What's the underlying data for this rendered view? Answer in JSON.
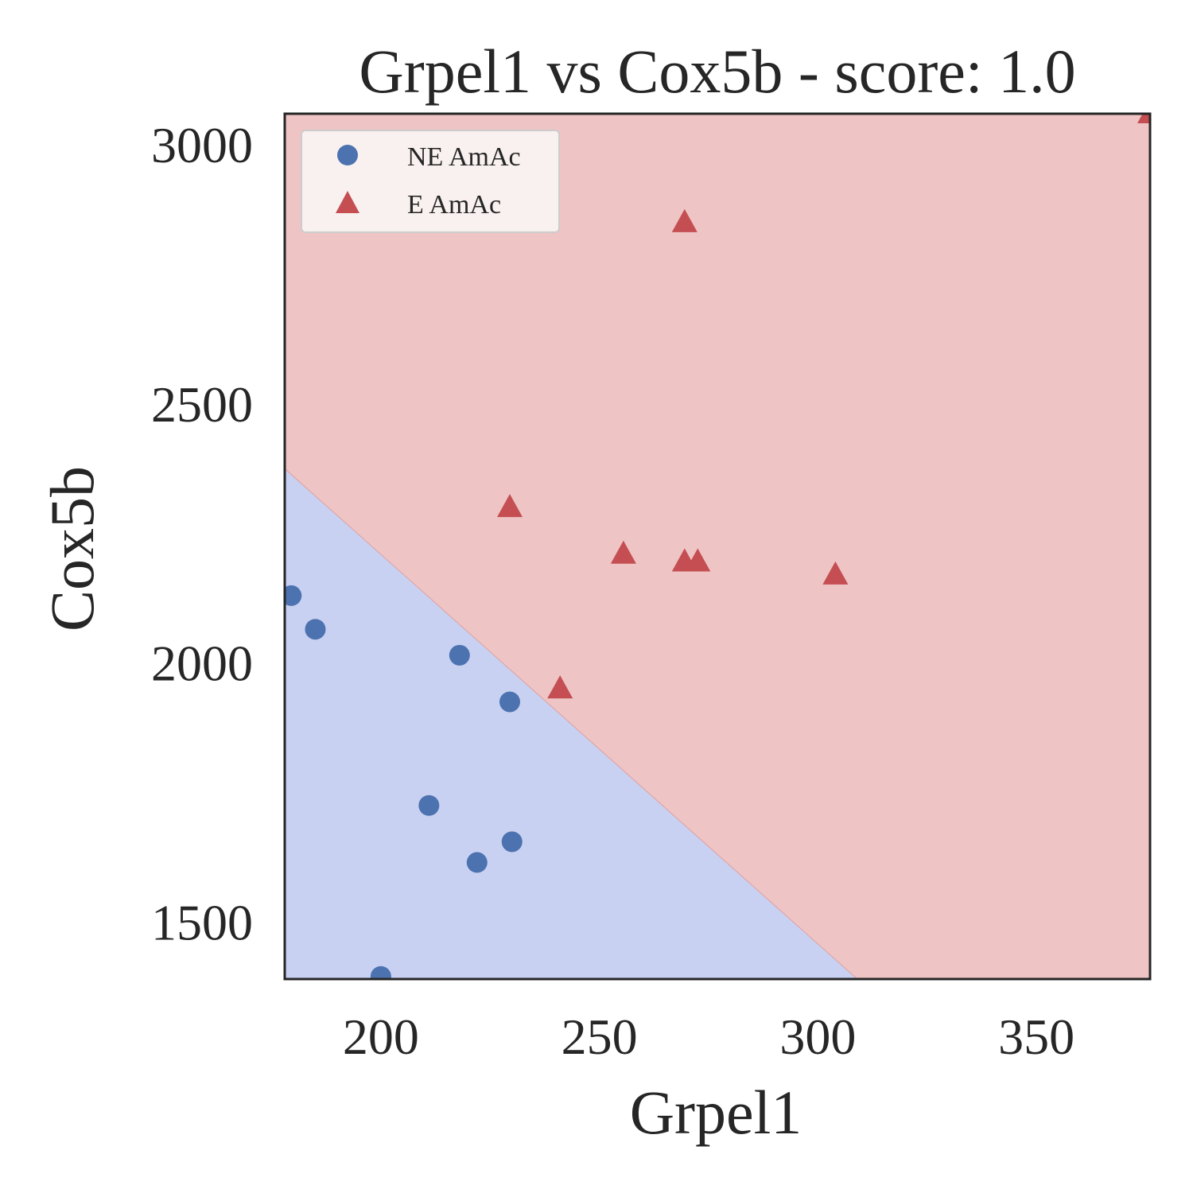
{
  "chart_data": {
    "type": "scatter",
    "title": "Grpel1 vs Cox5b - score: 1.0",
    "xlabel": "Grpel1",
    "ylabel": "Cox5b",
    "xlim": [
      178,
      376
    ],
    "ylim": [
      1390,
      3060
    ],
    "xticks": [
      200,
      250,
      300,
      350
    ],
    "yticks": [
      1500,
      2000,
      2500,
      3000
    ],
    "xtick_labels": [
      "200",
      "250",
      "300",
      "350"
    ],
    "ytick_labels": [
      "1500",
      "2000",
      "2500",
      "3000"
    ],
    "grid": false,
    "legend_position": "top-left",
    "decision_boundary": [
      [
        178,
        2375
      ],
      [
        309,
        1390
      ]
    ],
    "region_colors": {
      "NE AmAc": "#c8d1f1",
      "E AmAc": "#eec4c4"
    },
    "series": [
      {
        "name": "NE AmAc",
        "marker": "circle",
        "color": "#4c72b0",
        "points": [
          [
            179.5,
            2130
          ],
          [
            185,
            2065
          ],
          [
            218,
            2015
          ],
          [
            229.5,
            1925
          ],
          [
            211,
            1725
          ],
          [
            222,
            1615
          ],
          [
            230,
            1655
          ],
          [
            200,
            1395
          ]
        ]
      },
      {
        "name": "E AmAc",
        "marker": "triangle",
        "color": "#c44e52",
        "points": [
          [
            229.5,
            2300
          ],
          [
            241,
            1950
          ],
          [
            255.5,
            2210
          ],
          [
            269.5,
            2195
          ],
          [
            272.5,
            2195
          ],
          [
            304,
            2170
          ],
          [
            269.5,
            2850
          ],
          [
            376,
            3060
          ]
        ]
      }
    ]
  }
}
